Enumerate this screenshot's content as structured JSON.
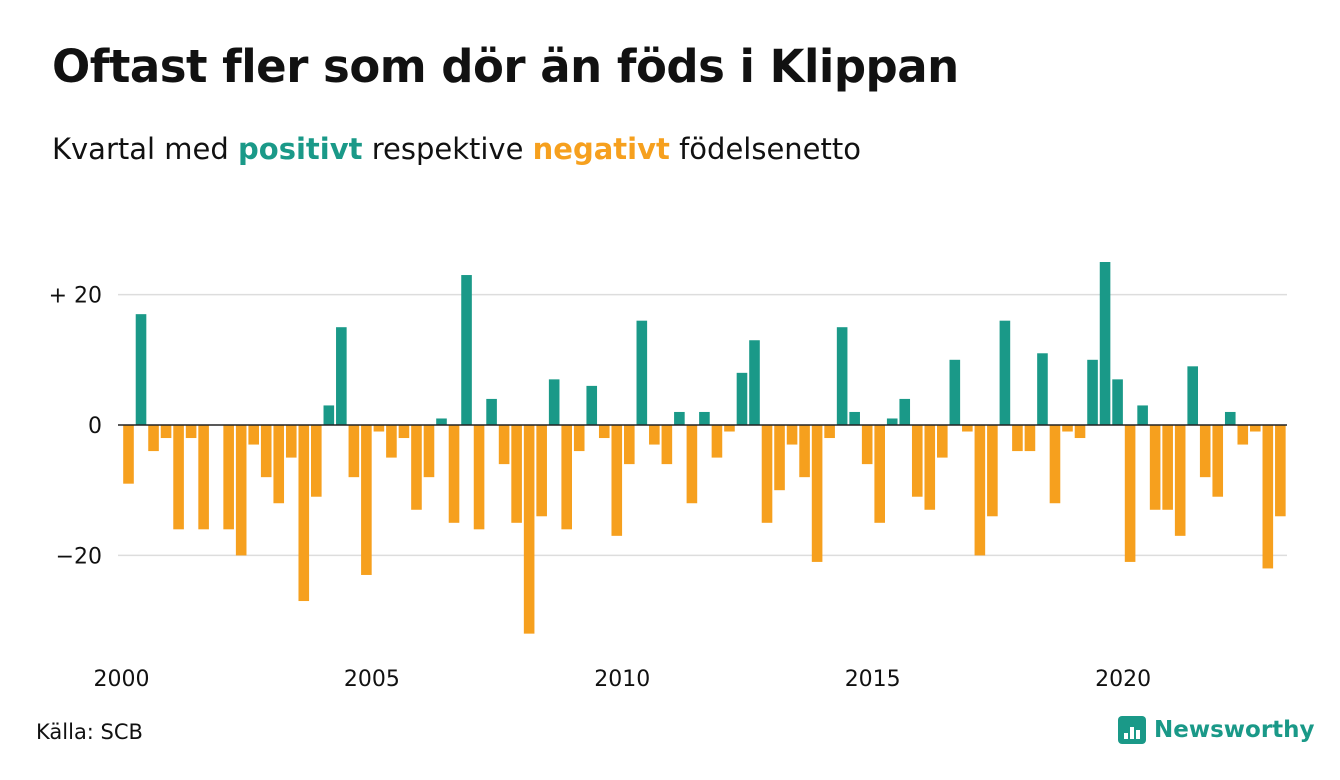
{
  "header": {
    "title": "Oftast fler som dör än föds i Klippan",
    "subtitle_prefix": "Kvartal med ",
    "subtitle_pos": "positivt",
    "subtitle_mid": " respektive ",
    "subtitle_neg": "negativt",
    "subtitle_suffix": " födelsenetto"
  },
  "footer": {
    "source": "Källa: SCB",
    "brand": "Newsworthy"
  },
  "colors": {
    "positive": "#1a9988",
    "negative": "#f6a01e",
    "grid": "#dddddd",
    "zero_line": "#222222"
  },
  "chart_data": {
    "type": "bar",
    "start": "2000 Q1",
    "period": "quarter",
    "ylim": [
      -33,
      27
    ],
    "yticks": [
      {
        "value": 20,
        "label": "+ 20"
      },
      {
        "value": 0,
        "label": "0"
      },
      {
        "value": -20,
        "label": "−20"
      }
    ],
    "xticks": [
      {
        "index": 0,
        "label": "2000"
      },
      {
        "index": 20,
        "label": "2005"
      },
      {
        "index": 40,
        "label": "2010"
      },
      {
        "index": 60,
        "label": "2015"
      },
      {
        "index": 80,
        "label": "2020"
      }
    ],
    "values": [
      -9,
      17,
      -4,
      -2,
      -16,
      -2,
      -16,
      0,
      -16,
      -20,
      -3,
      -8,
      -12,
      -5,
      -27,
      -11,
      3,
      15,
      -8,
      -23,
      -1,
      -5,
      -2,
      -13,
      -8,
      1,
      -15,
      23,
      -16,
      4,
      -6,
      -15,
      -32,
      -14,
      7,
      -16,
      -4,
      6,
      -2,
      -17,
      -6,
      16,
      -3,
      -6,
      2,
      -12,
      2,
      -5,
      -1,
      8,
      13,
      -15,
      -10,
      -3,
      -8,
      -21,
      -2,
      15,
      2,
      -6,
      -15,
      1,
      4,
      -11,
      -13,
      -5,
      10,
      -1,
      -20,
      -14,
      16,
      -4,
      -4,
      11,
      -12,
      -1,
      -2,
      10,
      25,
      7,
      -21,
      3,
      -13,
      -13,
      -17,
      9,
      -8,
      -11,
      2,
      -3,
      -1,
      -22,
      -14
    ]
  }
}
